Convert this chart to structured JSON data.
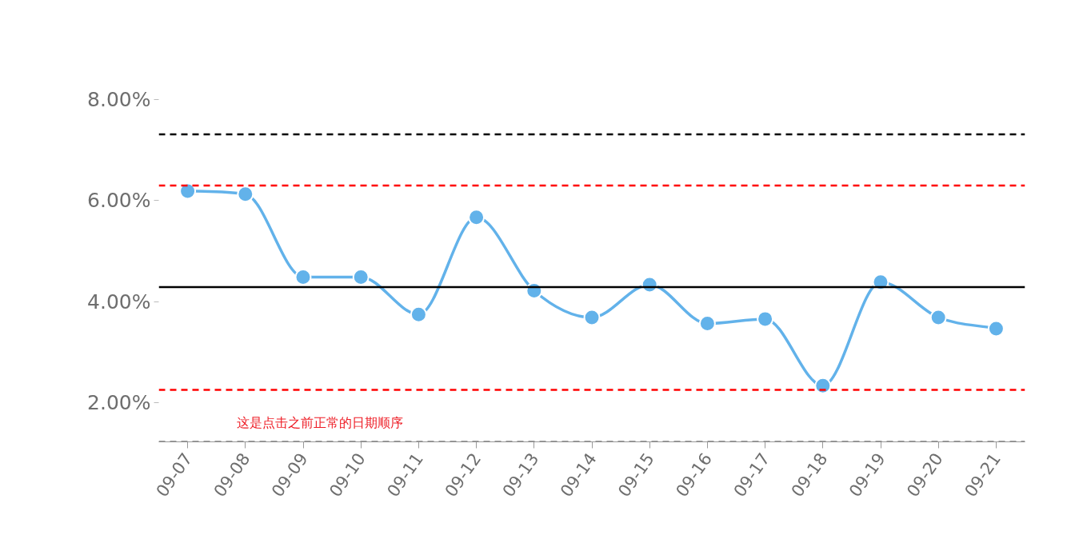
{
  "chart_data": {
    "type": "line",
    "categories": [
      "09-07",
      "09-08",
      "09-09",
      "09-10",
      "09-11",
      "09-12",
      "09-13",
      "09-14",
      "09-15",
      "09-16",
      "09-17",
      "09-18",
      "09-19",
      "09-20",
      "09-21"
    ],
    "series": [
      {
        "color": "#62b2ea",
        "values": [
          6.19,
          6.13,
          4.49,
          4.49,
          3.75,
          5.67,
          4.22,
          3.69,
          4.34,
          3.57,
          3.66,
          2.34,
          4.39,
          3.69,
          3.47
        ]
      }
    ],
    "ylim": [
      1.23,
      8.0
    ],
    "yticks": [
      {
        "value": 2,
        "label": "2.00%"
      },
      {
        "value": 4,
        "label": "4.00%"
      },
      {
        "value": 6,
        "label": "6.00%"
      },
      {
        "value": 8,
        "label": "8.00%"
      }
    ],
    "ref_lines": [
      {
        "axis": "y",
        "value": 7.31,
        "color": "#000000",
        "line_style": "dashed"
      },
      {
        "axis": "y",
        "value": 6.3,
        "color": "#ff0000",
        "line_style": "dashed"
      },
      {
        "axis": "y",
        "value": 4.29,
        "color": "#000000",
        "line_style": "solid"
      },
      {
        "axis": "y",
        "value": 2.26,
        "color": "#ff0000",
        "line_style": "dashed"
      },
      {
        "axis": "y",
        "value": 1.23,
        "color": "#808080",
        "line_style": "dashed"
      }
    ],
    "annotations": [
      "这是点击之前正常的日期顺序"
    ],
    "marker": "circle",
    "line_style": "solid"
  }
}
